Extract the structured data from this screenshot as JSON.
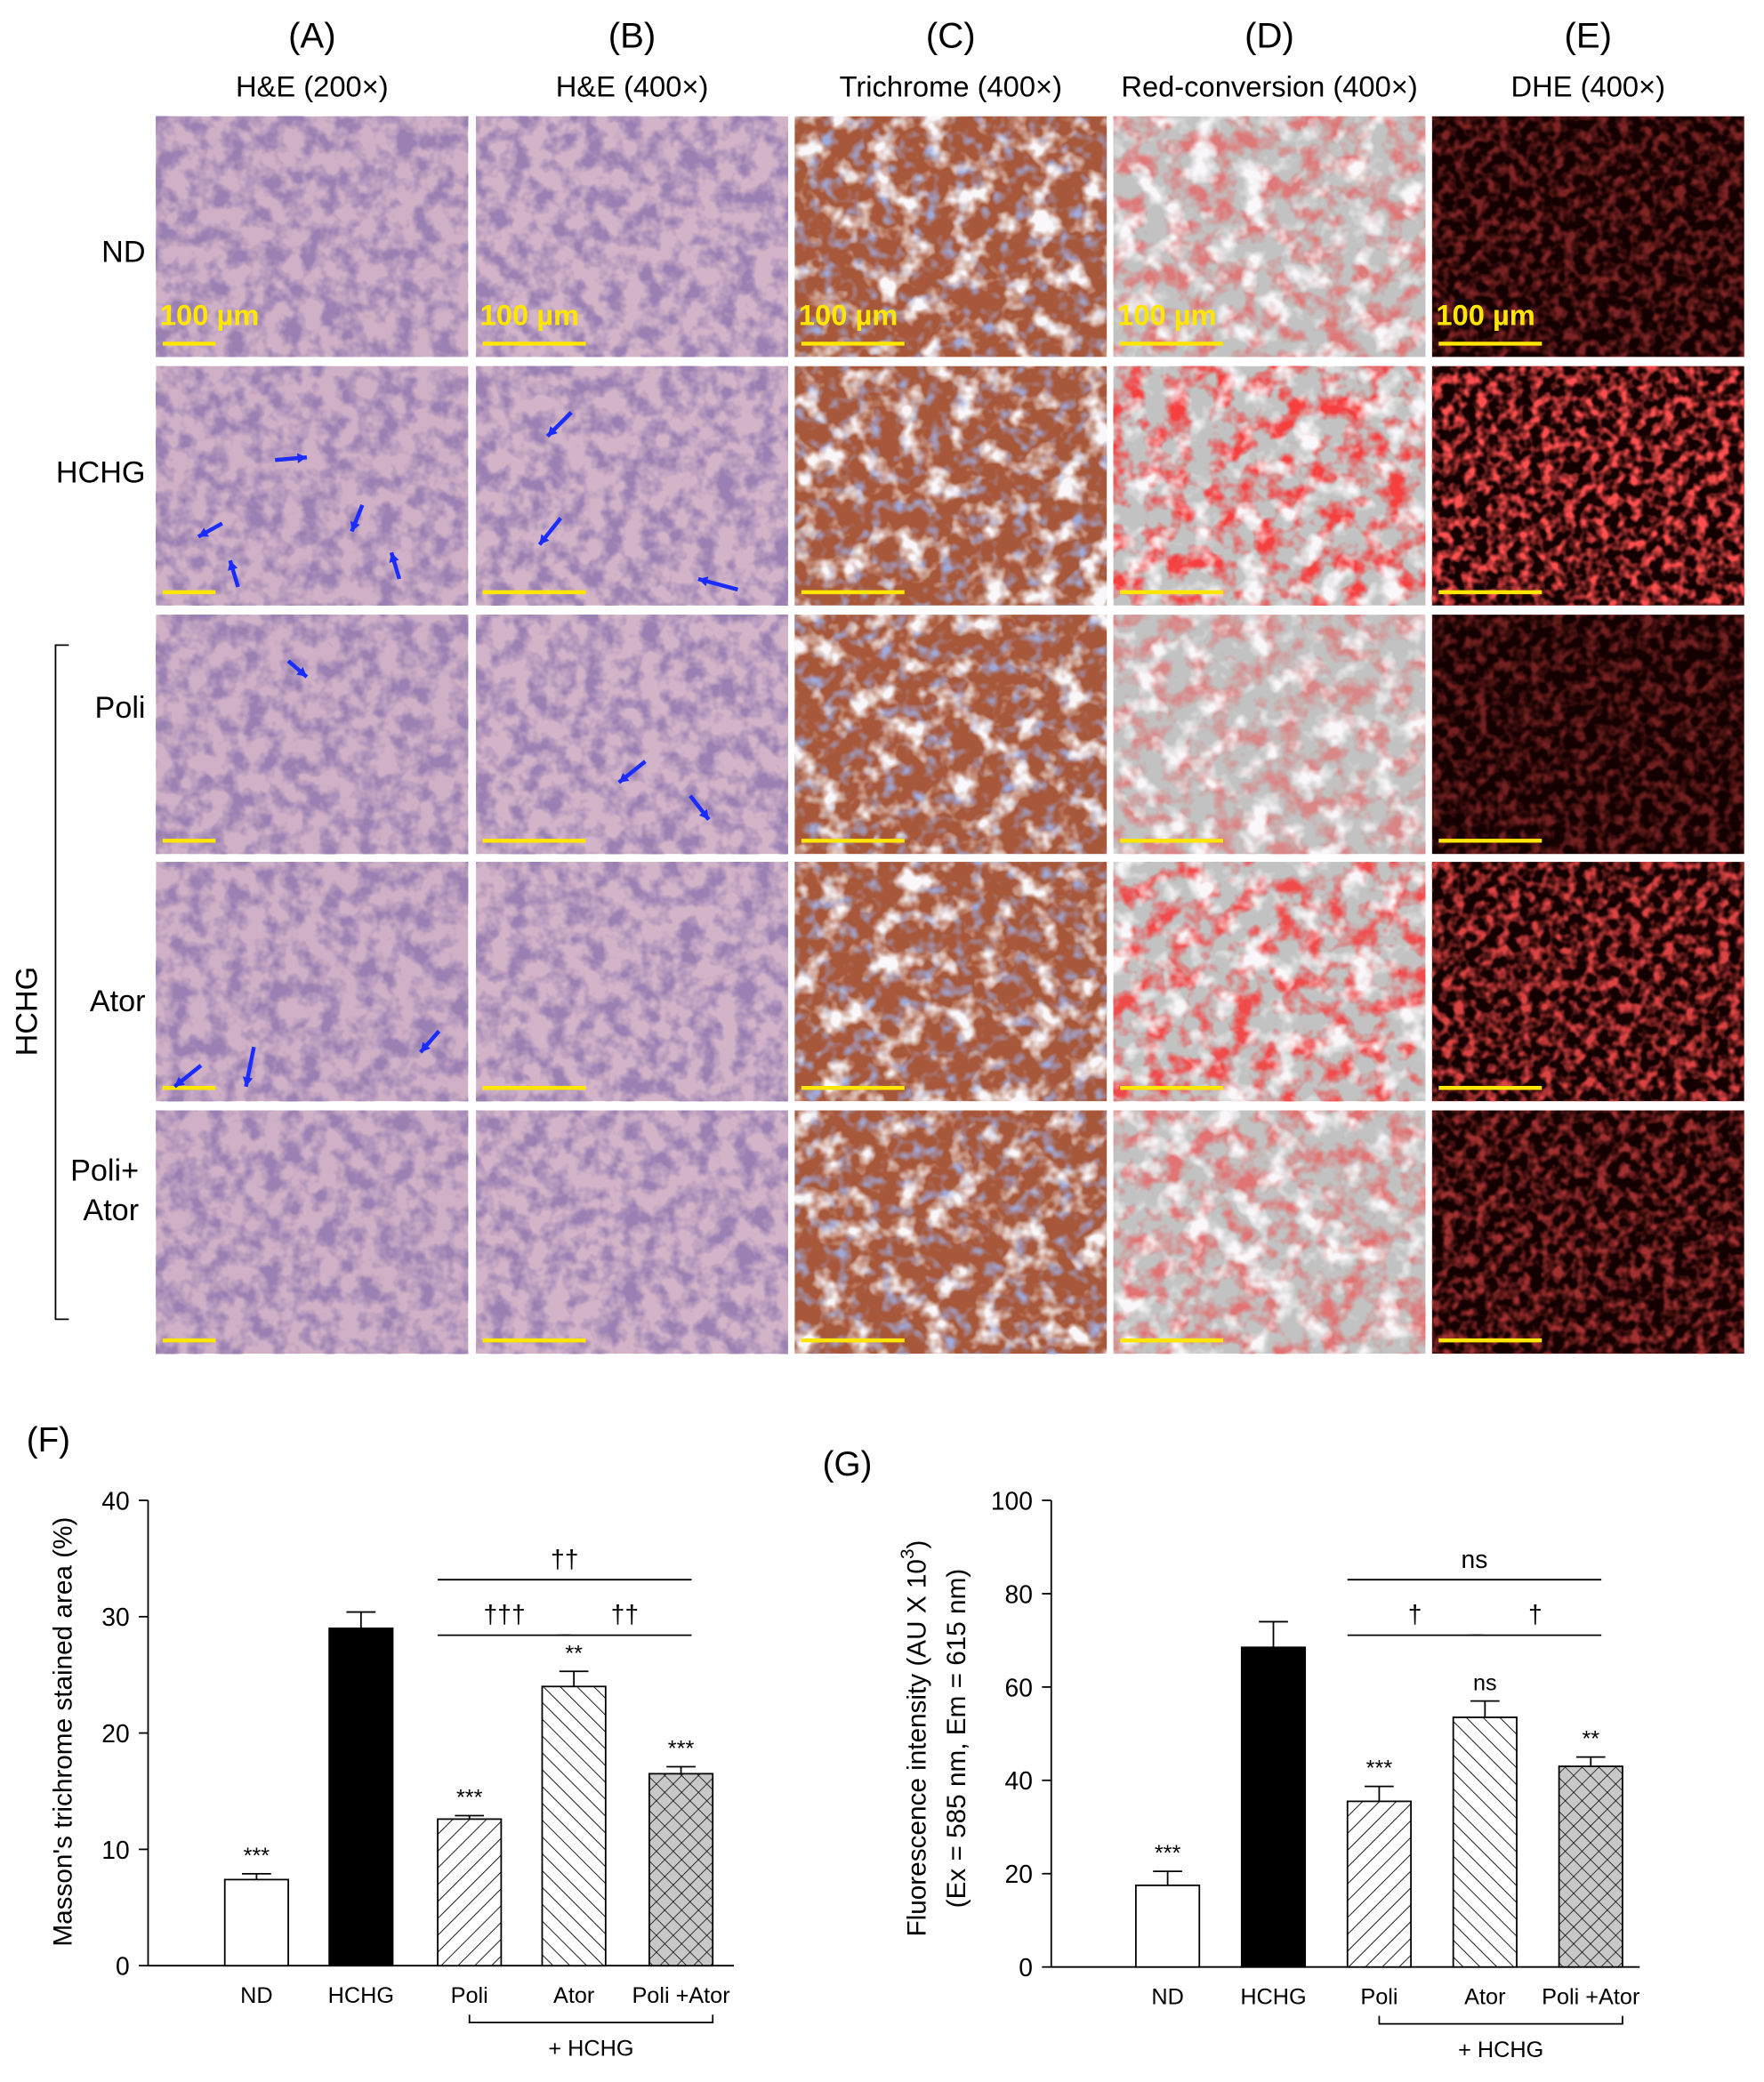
{
  "figure": {
    "columns": [
      {
        "letter": "(A)",
        "stain": "H&E (200×)"
      },
      {
        "letter": "(B)",
        "stain": "H&E (400×)"
      },
      {
        "letter": "(C)",
        "stain": "Trichrome (400×)"
      },
      {
        "letter": "(D)",
        "stain": "Red-conversion (400×)"
      },
      {
        "letter": "(E)",
        "stain": "DHE (400×)"
      }
    ],
    "rows": [
      [
        "ND"
      ],
      [
        "HCHG"
      ],
      [
        "Poli"
      ],
      [
        "Ator"
      ],
      [
        "Poli+",
        "Ator"
      ]
    ],
    "group_label": "HCHG",
    "scale_label": "100 µm"
  },
  "chart_data": [
    {
      "type": "bar",
      "panel": "(F)",
      "ylabel": {
        "main": "Masson's trichrome stained area (%)"
      },
      "categories": [
        "ND",
        "HCHG",
        "Poli",
        "Ator",
        "Poli +Ator"
      ],
      "values": [
        7.4,
        29,
        12.6,
        24,
        16.5
      ],
      "errors": [
        0.5,
        1.4,
        0.3,
        1.3,
        0.6
      ],
      "significance": [
        "***",
        null,
        "***",
        "**",
        "***"
      ],
      "fills": [
        "white",
        "black",
        "hatch-right",
        "hatch-left",
        "crosshatch"
      ],
      "ylim": [
        0,
        40
      ],
      "yticks": [
        0,
        10,
        20,
        30,
        40
      ],
      "comparisons": [
        {
          "label": "††",
          "between": [
            "Poli",
            "Poli +Ator"
          ]
        },
        {
          "label": "†††",
          "between": [
            "Poli",
            "Ator"
          ]
        },
        {
          "label": "††",
          "between": [
            "Ator",
            "Poli +Ator"
          ]
        }
      ],
      "group": {
        "label": "+ HCHG",
        "categories": [
          "Poli",
          "Ator",
          "Poli +Ator"
        ]
      }
    },
    {
      "type": "bar",
      "panel": "(G)",
      "ylabel": {
        "main": "Fluorescence intensity (AU X 10",
        "sup": "3",
        "end": ")",
        "line2": "(Ex = 585 nm, Em = 615 nm)"
      },
      "categories": [
        "ND",
        "HCHG",
        "Poli",
        "Ator",
        "Poli +Ator"
      ],
      "values": [
        17.5,
        68.5,
        35.5,
        53.5,
        43
      ],
      "errors": [
        3,
        5.5,
        3.2,
        3.5,
        2
      ],
      "significance": [
        "***",
        null,
        "***",
        "ns",
        "**"
      ],
      "fills": [
        "white",
        "black",
        "hatch-right",
        "hatch-left",
        "crosshatch"
      ],
      "ylim": [
        0,
        100
      ],
      "yticks": [
        0,
        20,
        40,
        60,
        80,
        100
      ],
      "comparisons": [
        {
          "label": "ns",
          "between": [
            "Poli",
            "Poli +Ator"
          ]
        },
        {
          "label": "†",
          "between": [
            "Poli",
            "Ator"
          ]
        },
        {
          "label": "†",
          "between": [
            "Ator",
            "Poli +Ator"
          ]
        }
      ],
      "group": {
        "label": "+ HCHG",
        "categories": [
          "Poli",
          "Ator",
          "Poli +Ator"
        ]
      }
    }
  ]
}
